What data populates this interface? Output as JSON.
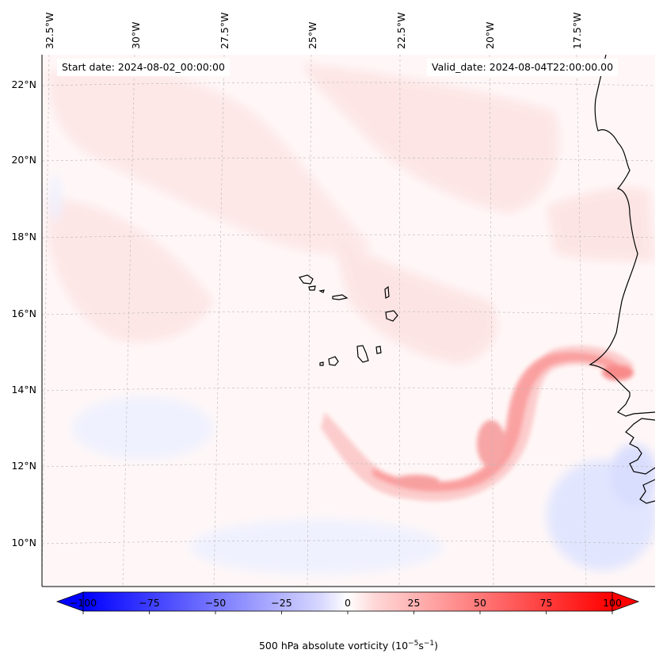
{
  "header": {
    "start_date": "Start date: 2024-08-02_00:00:00",
    "valid_date": "Valid_date: 2024-08-04T22:00:00.00"
  },
  "longitude_labels": [
    "32.5°W",
    "30°W",
    "27.5°W",
    "25°W",
    "22.5°W",
    "20°W",
    "17.5°W"
  ],
  "latitude_labels": [
    "22°N",
    "20°N",
    "18°N",
    "16°N",
    "14°N",
    "12°N",
    "10°N"
  ],
  "colorbar": {
    "ticks": [
      "−100",
      "−75",
      "−50",
      "−25",
      "0",
      "25",
      "50",
      "75",
      "100"
    ],
    "title_prefix": "500 hPa absolute vorticity (10",
    "title_exp1": "−5",
    "title_mid": "s",
    "title_exp2": "−1",
    "title_suffix": ")",
    "negative_color": "#0000ff",
    "positive_color": "#ff0000"
  },
  "map": {
    "background_color": "#fff7f7",
    "coastline_color": "#000000",
    "field": "500 hPa absolute vorticity"
  }
}
